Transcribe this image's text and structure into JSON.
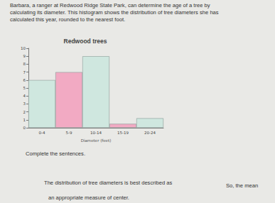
{
  "intro": [
    "Barbara, a ranger at Redwood Ridge State Park, can determine the age of a tree by",
    "calculating its diameter. This histogram shows the distribution of tree diameters she has",
    "calculated this year, rounded to the nearest foot."
  ],
  "chart_data": {
    "type": "bar",
    "title": "Redwood trees",
    "categories": [
      "0-4",
      "5-9",
      "10-14",
      "15-19",
      "20-24"
    ],
    "values": [
      6,
      7,
      9,
      0.5,
      1.2
    ],
    "colors": [
      "#cfe7df",
      "#f2aac3",
      "#cfe7df",
      "#f2aac3",
      "#cfe7df"
    ],
    "x_label": "Diameter (feet)",
    "ylim": [
      0,
      10
    ],
    "yticks": [
      0,
      1,
      2,
      3,
      4,
      5,
      6,
      7,
      8,
      9,
      10
    ],
    "grid": false
  },
  "prompt": "Complete the sentences.",
  "sentence1": "The distribution of tree diameters is best described as",
  "sentence2a": "So, the mean",
  "sentence2b": "an appropriate measure of center."
}
